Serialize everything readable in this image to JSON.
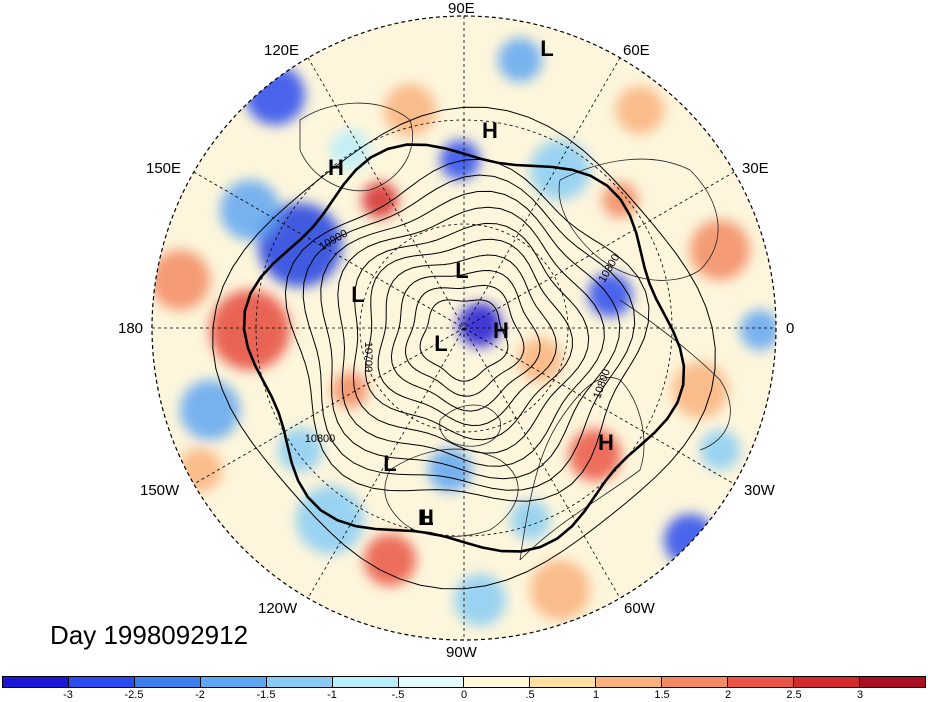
{
  "map": {
    "projection": "polar-stereographic",
    "hemisphere": "northern"
  },
  "longitude_labels": [
    "90E",
    "120E",
    "60E",
    "150E",
    "30E",
    "180",
    "0",
    "150W",
    "30W",
    "120W",
    "60W",
    "90W"
  ],
  "pressure_systems": [
    "L",
    "H",
    "H",
    "L",
    "L",
    "L",
    "H",
    "L",
    "H",
    "L",
    "H"
  ],
  "contour_labels": [
    "10900",
    "10700",
    "10800",
    "10800",
    "10800"
  ],
  "day_label": "Day 1998092912",
  "colorbar": {
    "colors": [
      "#1d16d6",
      "#2a4bef",
      "#3e7ff0",
      "#5fa6f2",
      "#88ccf4",
      "#b8eefa",
      "#e2fbfd",
      "#fff8d8",
      "#fee1a0",
      "#f9b27d",
      "#f28a63",
      "#ea5545",
      "#d42a2c",
      "#a80f22"
    ],
    "tick_labels": [
      "-3",
      "-2.5",
      "-2",
      "-1.5",
      "-1",
      "-.5",
      "0",
      ".5",
      "1",
      "1.5",
      "2",
      "2.5",
      "3"
    ]
  }
}
